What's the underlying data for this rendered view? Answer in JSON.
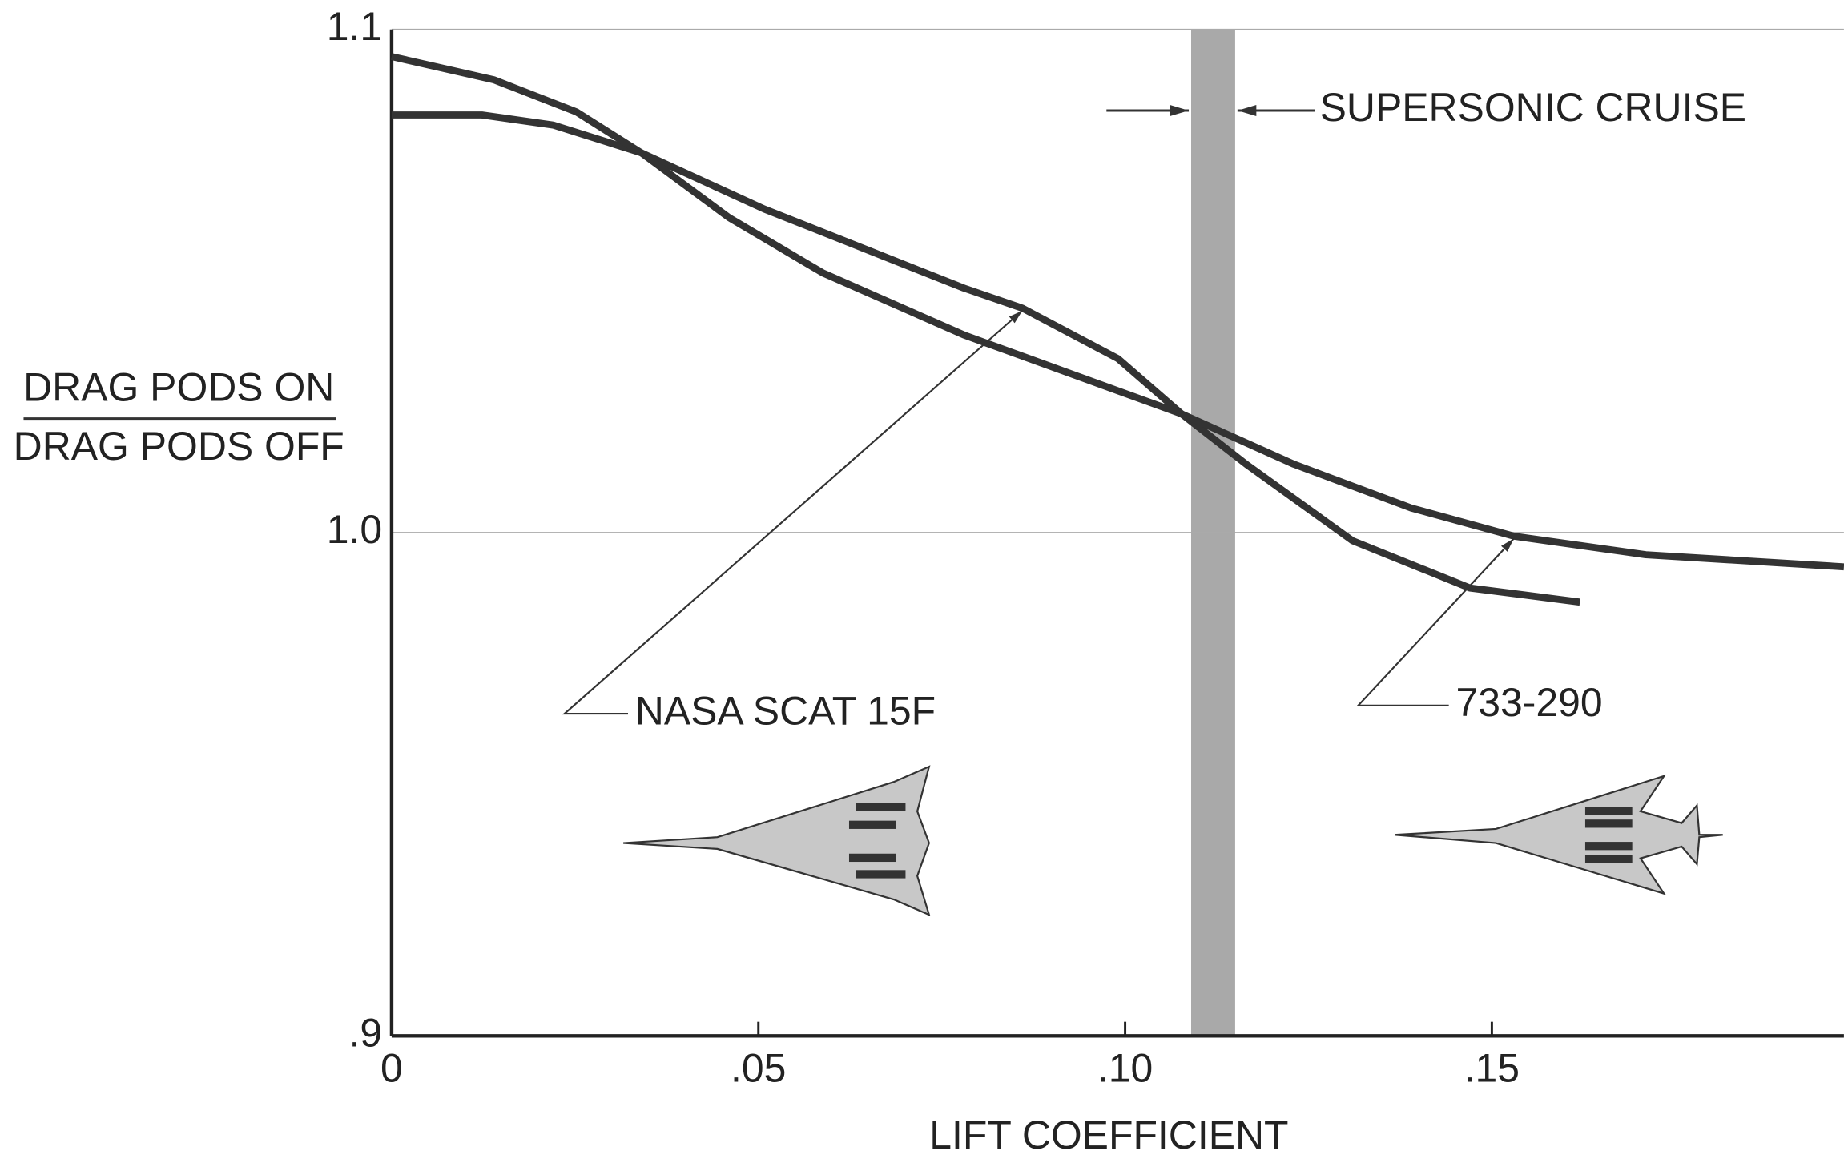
{
  "chart_data": {
    "type": "line",
    "xlabel": "LIFT COEFFICIENT",
    "ylabel": {
      "numerator": "DRAG PODS ON",
      "denominator": "DRAG PODS OFF"
    },
    "xlim": [
      0,
      0.198
    ],
    "ylim": [
      0.9,
      1.1
    ],
    "xticks": [
      0,
      {
        "value": 0.05,
        "label": ".05"
      },
      {
        "value": 0.1,
        "label": ".10"
      },
      {
        "value": 0.15,
        "label": ".15"
      }
    ],
    "yticks": [
      {
        "value": 0.9,
        "label": ".9"
      },
      {
        "value": 1,
        "label": "1.0"
      },
      1.1
    ],
    "grid": true,
    "band": {
      "label": "SUPERSONIC CRUISE",
      "x": [
        0.109,
        0.115
      ],
      "color": "#a9a9a9"
    },
    "series": [
      {
        "name": "NASA SCAT 15F",
        "color": "#333333",
        "x": [
          0,
          0.0123,
          0.022,
          0.034,
          0.0508,
          0.078,
          0.086,
          0.099,
          0.1077,
          0.1165,
          0.131,
          0.147,
          0.162
        ],
        "values": [
          1.083,
          1.083,
          1.081,
          1.0755,
          1.0643,
          1.0486,
          1.0446,
          1.0346,
          1.0236,
          1.0136,
          0.9984,
          0.989,
          0.9862
        ]
      },
      {
        "name": "733-290",
        "color": "#333333",
        "x": [
          0,
          0.0139,
          0.0252,
          0.034,
          0.046,
          0.0588,
          0.078,
          0.1077,
          0.123,
          0.139,
          0.153,
          0.171,
          0.198
        ],
        "values": [
          1.0946,
          1.09,
          1.0836,
          1.0755,
          1.0626,
          1.0516,
          1.0393,
          1.0236,
          1.0136,
          1.0049,
          0.9993,
          0.9956,
          0.9932
        ]
      }
    ]
  }
}
